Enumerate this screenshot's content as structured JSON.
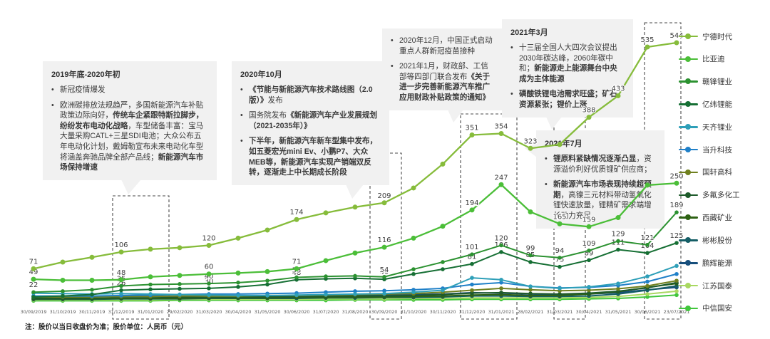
{
  "note": "注：股价以当日收盘价为准；股价单位：人民币（元）",
  "legend": [
    {
      "label": "宁德时代",
      "color": "#86BC3B"
    },
    {
      "label": "比亚迪",
      "color": "#4BBE38"
    },
    {
      "label": "赣锋锂业",
      "color": "#2C9231"
    },
    {
      "label": "亿纬锂能",
      "color": "#166F34"
    },
    {
      "label": "天齐锂业",
      "color": "#2E9FB8"
    },
    {
      "label": "当升科技",
      "color": "#2080C8"
    },
    {
      "label": "国轩高科",
      "color": "#70801F"
    },
    {
      "label": "多氟多化工",
      "color": "#1E5B2B"
    },
    {
      "label": "西藏矿业",
      "color": "#2E6214"
    },
    {
      "label": "彬彬股份",
      "color": "#155E66"
    },
    {
      "label": "鹏辉能源",
      "color": "#174F7C"
    },
    {
      "label": "江苏国泰",
      "color": "#A9D861"
    },
    {
      "label": "中信国安",
      "color": "#41C63C"
    }
  ],
  "annotations": [
    {
      "title": "2019年底-2020年初",
      "bullets": [
        [
          {
            "t": "新冠疫情爆发",
            "b": false
          }
        ],
        [
          {
            "t": "欧洲碳排放法规趋严，多国新能源汽车补贴政策边际向好，",
            "b": false
          },
          {
            "t": "传统车企紧跟特斯拉脚步，纷纷发布电动化战略",
            "b": true
          },
          {
            "t": "，车型储备丰富：宝马大量采购CATL+三星SDI电池；大众公布五年电动化计划，戴姆勒宣布未来电动化车型将涵盖奔驰品牌全部产品线；",
            "b": false
          },
          {
            "t": "新能源汽车市场保持增速",
            "b": true
          }
        ]
      ]
    },
    {
      "title": "2020年10月",
      "bullets": [
        [
          {
            "t": "《节能与新能源汽车技术路线图（2.0版）》",
            "b": true
          },
          {
            "t": "发布",
            "b": false
          }
        ],
        [
          {
            "t": "国务院发布",
            "b": false
          },
          {
            "t": "《新能源汽车产业发展规划（2021-2035年）》",
            "b": true
          }
        ],
        [
          {
            "t": "下半年，新能源汽车新车型集中发布，如五菱宏光mini Ev、小鹏P7、大众MEB等，新能源汽车实现产销端双反转，逐渐走上中长期成长阶段",
            "b": true
          }
        ]
      ]
    },
    {
      "title": "",
      "bullets": [
        [
          {
            "t": "2020年12月，中国正式启动重点人群新冠疫苗接种",
            "b": false
          }
        ],
        [
          {
            "t": "2021年1月，财政部、工信部等四部门联合发布",
            "b": false
          },
          {
            "t": "《关于进一步完善新能源汽车推广应用财政补贴政策的通知》",
            "b": true
          }
        ]
      ]
    },
    {
      "title": "2021年3月",
      "bullets": [
        [
          {
            "t": "十三届全国人大四次会议提出2030年碳达峰，2060年碳中和；",
            "b": false
          },
          {
            "t": "新能源走上能源舞台中央成为主体能源",
            "b": true
          }
        ],
        [
          {
            "t": "磷酸铁锂电池需求旺盛；矿石资源紧张；锂价上涨",
            "b": true
          }
        ]
      ]
    },
    {
      "title": "2021年7月",
      "bullets": [
        [
          {
            "t": "锂原料紧缺情况逐渐凸显",
            "b": true
          },
          {
            "t": "，资源溢价利好优质锂矿供应商；",
            "b": false
          }
        ],
        [
          {
            "t": "新能源汽车市场表现持续超预期",
            "b": true
          },
          {
            "t": "，高镍三元材料带动氢氧化锂快速放量，锂精矿需求端增长动力充足",
            "b": false
          }
        ]
      ]
    }
  ],
  "chart_data": {
    "type": "line",
    "title": "",
    "ylabel": "股价（人民币元）",
    "grid": false,
    "legend_position": "right",
    "ylim": [
      0,
      560
    ],
    "categories": [
      "30/09/2019",
      "31/10/2019",
      "30/11/2019",
      "31/12/2019",
      "31/01/2020",
      "29/02/2020",
      "31/03/2020",
      "30/04/2020",
      "31/05/2020",
      "30/06/2020",
      "31/07/2020",
      "31/08/2020",
      "30/09/2020",
      "31/10/2020",
      "30/11/2020",
      "31/12/2020",
      "31/01/2021",
      "28/02/2021",
      "31/03/2021",
      "30/04/2021",
      "31/05/2021",
      "30/06/2021",
      "23/07/2021"
    ],
    "highlights": [
      {
        "from": "31/12/2019",
        "to": "31/01/2020"
      },
      {
        "from": "30/09/2020",
        "to": "30/09/2020"
      },
      {
        "from": "31/12/2020",
        "to": "31/01/2021"
      },
      {
        "from": "31/03/2021",
        "to": "31/03/2021"
      },
      {
        "from": "30/06/2021",
        "to": "23/07/2021"
      }
    ],
    "series": [
      {
        "name": "宁德时代",
        "color": "#86BC3B",
        "values": [
          71,
          85,
          95,
          106,
          112,
          115,
          120,
          135,
          152,
          174,
          188,
          200,
          209,
          240,
          290,
          351,
          354,
          323,
          331,
          388,
          433,
          535,
          544
        ],
        "labels": [
          71,
          null,
          null,
          106,
          null,
          null,
          120,
          null,
          null,
          174,
          null,
          null,
          209,
          null,
          null,
          351,
          354,
          323,
          null,
          388,
          433,
          535,
          544
        ]
      },
      {
        "name": "比亚迪",
        "color": "#4BBE38",
        "values": [
          49,
          47,
          47,
          48,
          54,
          57,
          60,
          62,
          65,
          71,
          88,
          104,
          116,
          135,
          160,
          194,
          247,
          190,
          165,
          159,
          178,
          246,
          250
        ],
        "labels": [
          49,
          null,
          null,
          48,
          null,
          null,
          60,
          null,
          null,
          71,
          null,
          null,
          116,
          null,
          null,
          194,
          247,
          null,
          165,
          159,
          null,
          null,
          250
        ]
      },
      {
        "name": "赣锋锂业",
        "color": "#2C9231",
        "values": [
          22,
          24,
          27,
          35,
          38,
          39,
          40,
          42,
          46,
          53,
          55,
          56,
          54,
          70,
          85,
          101,
          120,
          99,
          94,
          109,
          129,
          121,
          189
        ],
        "labels": [
          22,
          null,
          null,
          35,
          null,
          null,
          40,
          null,
          null,
          53,
          null,
          null,
          54,
          null,
          null,
          101,
          120,
          99,
          94,
          109,
          129,
          121,
          189
        ]
      },
      {
        "name": "亿纬锂能",
        "color": "#166F34",
        "values": [
          12,
          14,
          17,
          26,
          28,
          29,
          30,
          33,
          38,
          48,
          50,
          51,
          49,
          60,
          70,
          81,
          106,
          85,
          75,
          89,
          111,
          104,
          125
        ],
        "labels": [
          null,
          null,
          null,
          26,
          null,
          null,
          30,
          null,
          null,
          48,
          null,
          null,
          49,
          null,
          null,
          81,
          106,
          85,
          75,
          89,
          111,
          104,
          125
        ]
      },
      {
        "name": "天齐锂业",
        "color": "#2E9FB8",
        "values": [
          20,
          19,
          18,
          19,
          18,
          17,
          16,
          15,
          15,
          16,
          17,
          18,
          19,
          22,
          26,
          52,
          48,
          34,
          30,
          33,
          40,
          55,
          77
        ],
        "labels": [
          null,
          null,
          null,
          null,
          null,
          null,
          null,
          null,
          null,
          null,
          null,
          null,
          null,
          null,
          null,
          null,
          null,
          null,
          null,
          null,
          null,
          null,
          null
        ]
      },
      {
        "name": "当升科技",
        "color": "#2080C8",
        "values": [
          14,
          14,
          14,
          15,
          16,
          17,
          18,
          18,
          19,
          20,
          22,
          24,
          25,
          27,
          30,
          38,
          42,
          34,
          31,
          32,
          36,
          44,
          60
        ],
        "labels": [
          null,
          null,
          null,
          null,
          null,
          null,
          null,
          null,
          null,
          null,
          null,
          null,
          null,
          null,
          null,
          null,
          null,
          null,
          null,
          null,
          null,
          null,
          null
        ]
      },
      {
        "name": "国轩高科",
        "color": "#70801F",
        "values": [
          12,
          12,
          12,
          13,
          13,
          14,
          14,
          14,
          15,
          15,
          16,
          17,
          18,
          19,
          22,
          26,
          30,
          27,
          25,
          26,
          29,
          35,
          46
        ],
        "labels": [
          null,
          null,
          null,
          null,
          null,
          null,
          null,
          null,
          null,
          null,
          null,
          null,
          null,
          null,
          null,
          null,
          null,
          null,
          null,
          null,
          null,
          null,
          null
        ]
      },
      {
        "name": "多氟多化工",
        "color": "#1E5B2B",
        "values": [
          9,
          9,
          9,
          10,
          10,
          11,
          11,
          11,
          12,
          12,
          13,
          14,
          14,
          15,
          17,
          20,
          21,
          19,
          18,
          20,
          24,
          31,
          42
        ],
        "labels": [
          null,
          null,
          null,
          null,
          null,
          null,
          null,
          null,
          null,
          null,
          null,
          null,
          null,
          null,
          null,
          null,
          null,
          null,
          null,
          null,
          null,
          null,
          null
        ]
      },
      {
        "name": "西藏矿业",
        "color": "#2E6214",
        "values": [
          8,
          8,
          8,
          9,
          9,
          9,
          10,
          10,
          10,
          11,
          11,
          12,
          12,
          13,
          14,
          16,
          17,
          15,
          15,
          18,
          23,
          32,
          40
        ],
        "labels": [
          null,
          null,
          null,
          null,
          null,
          null,
          null,
          null,
          null,
          null,
          null,
          null,
          null,
          null,
          null,
          null,
          null,
          null,
          null,
          null,
          null,
          null,
          null
        ]
      },
      {
        "name": "彬彬股份",
        "color": "#155E66",
        "values": [
          7,
          7,
          7,
          8,
          8,
          8,
          9,
          9,
          9,
          9,
          10,
          10,
          11,
          11,
          12,
          14,
          14,
          13,
          13,
          14,
          18,
          26,
          35
        ],
        "labels": [
          null,
          null,
          null,
          null,
          null,
          null,
          null,
          null,
          null,
          null,
          null,
          null,
          null,
          null,
          null,
          null,
          null,
          null,
          null,
          null,
          null,
          null,
          null
        ]
      },
      {
        "name": "鹏辉能源",
        "color": "#174F7C",
        "values": [
          13,
          12,
          12,
          13,
          13,
          13,
          14,
          14,
          14,
          15,
          15,
          16,
          16,
          17,
          18,
          21,
          20,
          18,
          17,
          18,
          21,
          27,
          32
        ],
        "labels": [
          null,
          null,
          null,
          null,
          null,
          null,
          null,
          null,
          null,
          null,
          null,
          null,
          null,
          null,
          null,
          null,
          null,
          null,
          null,
          null,
          null,
          null,
          null
        ]
      },
      {
        "name": "江苏国泰",
        "color": "#A9D861",
        "values": [
          6,
          6,
          6,
          6,
          6,
          7,
          7,
          7,
          7,
          7,
          8,
          8,
          8,
          9,
          9,
          10,
          10,
          10,
          10,
          11,
          13,
          18,
          24
        ],
        "labels": [
          null,
          null,
          null,
          null,
          null,
          null,
          null,
          null,
          null,
          null,
          null,
          null,
          null,
          null,
          null,
          null,
          null,
          null,
          null,
          null,
          null,
          null,
          null
        ]
      },
      {
        "name": "中信国安",
        "color": "#41C63C",
        "values": [
          4,
          4,
          4,
          4,
          4,
          5,
          5,
          5,
          5,
          5,
          5,
          6,
          6,
          6,
          6,
          7,
          7,
          7,
          7,
          8,
          9,
          12,
          16
        ],
        "labels": [
          null,
          null,
          null,
          null,
          null,
          null,
          null,
          null,
          null,
          null,
          null,
          null,
          null,
          null,
          null,
          null,
          null,
          null,
          null,
          null,
          null,
          null,
          null
        ]
      }
    ]
  }
}
